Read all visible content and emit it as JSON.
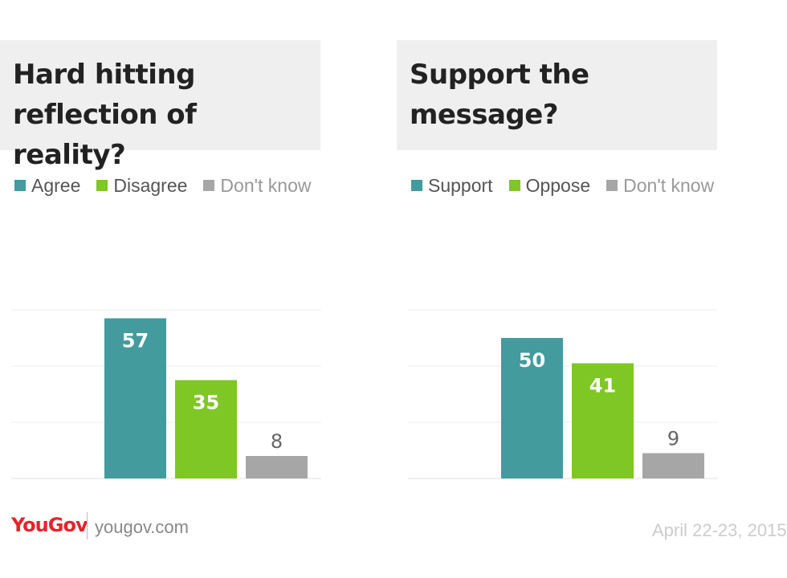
{
  "chart_data": [
    {
      "type": "bar",
      "title": "Hard hitting reflection of reality?",
      "categories": [
        "Agree",
        "Disagree",
        "Don't know"
      ],
      "values": [
        57,
        35,
        8
      ],
      "colors": [
        "#439b9e",
        "#7fc725",
        "#a6a6a6"
      ],
      "label_colors": [
        "#ffffff",
        "#ffffff",
        "#666666"
      ],
      "ylim": [
        0,
        60
      ],
      "grid": true,
      "legend": "top-left"
    },
    {
      "type": "bar",
      "title": "Support the message?",
      "categories": [
        "Support",
        "Oppose",
        "Don't know"
      ],
      "values": [
        50,
        41,
        9
      ],
      "colors": [
        "#439b9e",
        "#7fc725",
        "#a6a6a6"
      ],
      "label_colors": [
        "#ffffff",
        "#ffffff",
        "#666666"
      ],
      "ylim": [
        0,
        60
      ],
      "grid": true,
      "legend": "top-left"
    }
  ],
  "footer": {
    "logo": "YouGov",
    "url": "yougov.com",
    "date": "April 22-23, 2015"
  }
}
